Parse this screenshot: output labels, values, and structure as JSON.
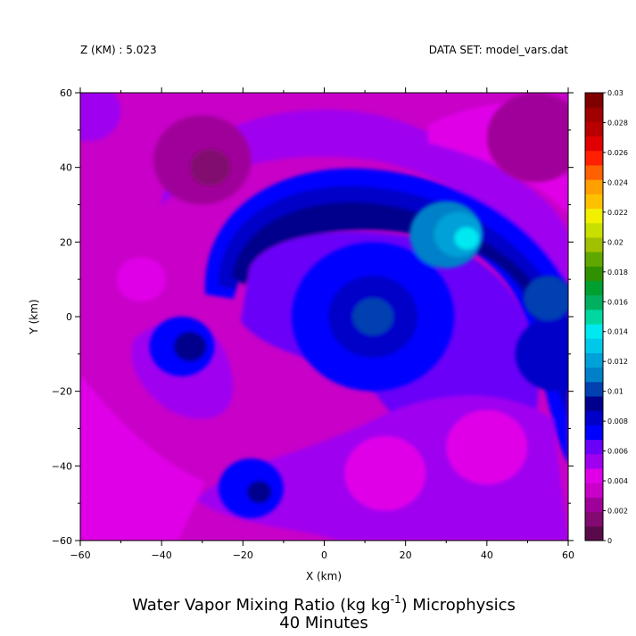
{
  "header": {
    "level": "Z (KM) : 5.023",
    "dataset": "DATA SET: model_vars.dat"
  },
  "title": {
    "line1_main": "Water Vapor Mixing Ratio (kg kg",
    "line1_sup": "-1",
    "line1_tail": ") Microphysics",
    "line2": "40 Minutes"
  },
  "chart_data": {
    "type": "heatmap",
    "xlabel": "X (km)",
    "ylabel": "Y (km)",
    "xlim": [
      -60,
      60
    ],
    "ylim": [
      -60,
      60
    ],
    "xticks": [
      -60,
      -40,
      -20,
      0,
      20,
      40,
      60
    ],
    "xtick_labels": [
      "−60",
      "−40",
      "−20",
      "0",
      "20",
      "40",
      "60"
    ],
    "yticks": [
      -60,
      -40,
      -20,
      0,
      20,
      40,
      60
    ],
    "ytick_labels": [
      "−60",
      "−40",
      "−20",
      "0",
      "20",
      "40",
      "60"
    ],
    "colorbar": {
      "levels": [
        0,
        0.002,
        0.004,
        0.006,
        0.008,
        0.01,
        0.012,
        0.014,
        0.016,
        0.018,
        0.02,
        0.022,
        0.024,
        0.026,
        0.028,
        0.03
      ],
      "labels": [
        "0",
        "0.002",
        "0.004",
        "0.006",
        "0.008",
        "0.01",
        "0.012",
        "0.014",
        "0.016",
        "0.018",
        "0.02",
        "0.022",
        "0.024",
        "0.026",
        "0.028",
        "0.03"
      ],
      "colors": [
        "#5a0a4a",
        "#820a70",
        "#a0009a",
        "#c800c8",
        "#e000e8",
        "#a000f0",
        "#6a00f8",
        "#0000ff",
        "#0000c8",
        "#00008c",
        "#0040b0",
        "#0080c8",
        "#00a0d8",
        "#00c8e8",
        "#00e8f0",
        "#00d8a0",
        "#00b060",
        "#00a030",
        "#309000",
        "#60a800",
        "#a0c000",
        "#c8e000",
        "#f0f000",
        "#ffc000",
        "#ffa000",
        "#ff6000",
        "#ff2000",
        "#e00000",
        "#b80000",
        "#a00000",
        "#800000"
      ]
    },
    "field": {
      "base_color": "#c800c8",
      "features": [
        {
          "x": -58,
          "y": 55,
          "r": 8,
          "color": "#a000f0"
        },
        {
          "x": -30,
          "y": 42,
          "r": 12,
          "color": "#a0009a"
        },
        {
          "x": -28,
          "y": 40,
          "r": 5,
          "color": "#820a70"
        },
        {
          "x": -35,
          "y": -8,
          "r": 8,
          "color": "#0000ff"
        },
        {
          "x": -33,
          "y": -8,
          "r": 4,
          "color": "#00008c"
        },
        {
          "x": 12,
          "y": 0,
          "r": 20,
          "color": "#0000ff"
        },
        {
          "x": 12,
          "y": 0,
          "r": 11,
          "color": "#0000c8"
        },
        {
          "x": 12,
          "y": 0,
          "r": 5,
          "color": "#0040b0"
        },
        {
          "x": -18,
          "y": -46,
          "r": 8,
          "color": "#0000ff"
        },
        {
          "x": -16,
          "y": -47,
          "r": 3,
          "color": "#00008c"
        },
        {
          "x": 57,
          "y": -10,
          "r": 10,
          "color": "#0000c8"
        },
        {
          "x": 55,
          "y": 5,
          "r": 6,
          "color": "#0040b0"
        },
        {
          "x": 30,
          "y": 22,
          "r": 9,
          "color": "#0080c8"
        },
        {
          "x": 33,
          "y": 22,
          "r": 6,
          "color": "#00a0d8"
        },
        {
          "x": 35,
          "y": 21,
          "r": 3,
          "color": "#00e8f0"
        },
        {
          "x": 52,
          "y": 48,
          "r": 12,
          "color": "#a0009a"
        },
        {
          "x": 15,
          "y": -42,
          "r": 10,
          "color": "#e000e8"
        },
        {
          "x": 40,
          "y": -35,
          "r": 10,
          "color": "#e000e8"
        },
        {
          "x": -45,
          "y": 10,
          "r": 6,
          "color": "#e000e8"
        }
      ]
    }
  }
}
